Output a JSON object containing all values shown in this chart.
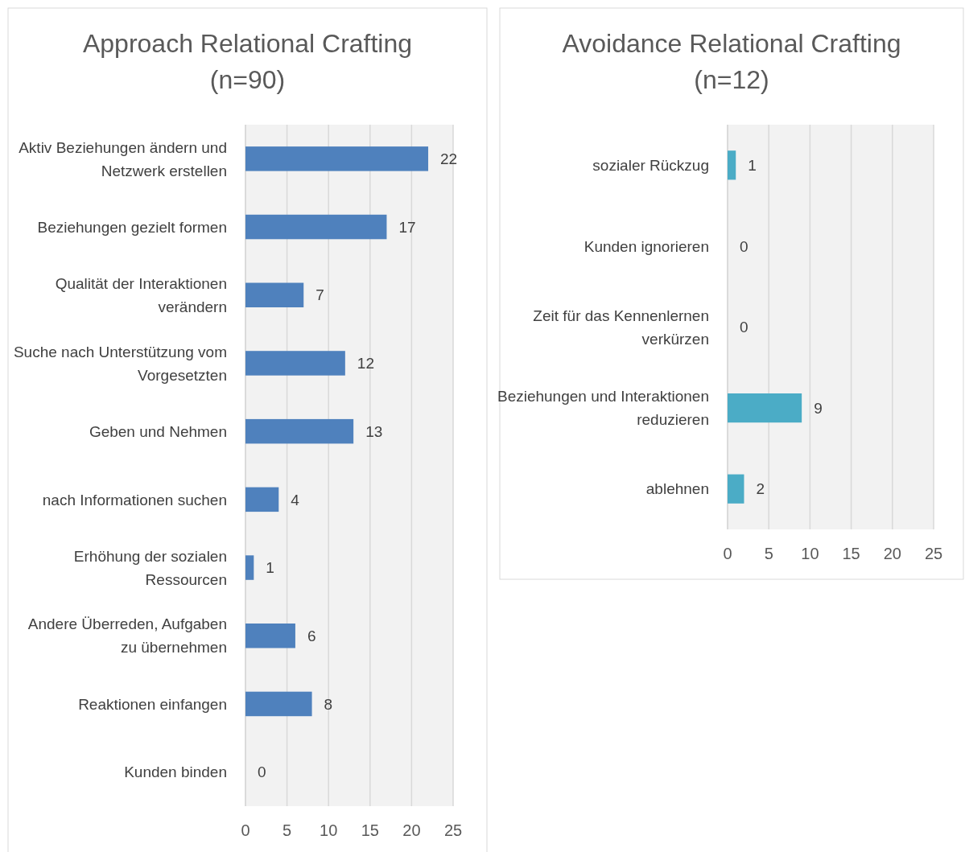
{
  "chart_data": [
    {
      "type": "bar",
      "orientation": "horizontal",
      "title": "Approach Relational Crafting (n=90)",
      "categories": [
        "Aktiv Beziehungen ändern und Netzwerk erstellen",
        "Beziehungen gezielt formen",
        "Qualität der Interaktionen verändern",
        "Suche nach Unterstützung vom Vorgesetzten",
        "Geben und Nehmen",
        "nach Informationen suchen",
        "Erhöhung der sozialen Ressourcen",
        "Andere Überreden, Aufgaben zu übernehmen",
        "Reaktionen einfangen",
        "Kunden binden"
      ],
      "values": [
        22,
        17,
        7,
        12,
        13,
        4,
        1,
        6,
        8,
        0
      ],
      "color": "#4f81bd",
      "xlim": [
        0,
        25
      ],
      "xticks": [
        0,
        5,
        10,
        15,
        20,
        25
      ],
      "grid": "x",
      "data_labels": true
    },
    {
      "type": "bar",
      "orientation": "horizontal",
      "title": "Avoidance Relational Crafting (n=12)",
      "categories": [
        "sozialer Rückzug",
        "Kunden ignorieren",
        "Zeit für das Kennenlernen verkürzen",
        "Beziehungen und Interaktionen reduzieren",
        "ablehnen"
      ],
      "values": [
        1,
        0,
        0,
        9,
        2
      ],
      "color": "#4bacc6",
      "xlim": [
        0,
        25
      ],
      "xticks": [
        0,
        5,
        10,
        15,
        20,
        25
      ],
      "grid": "x",
      "data_labels": true
    }
  ]
}
